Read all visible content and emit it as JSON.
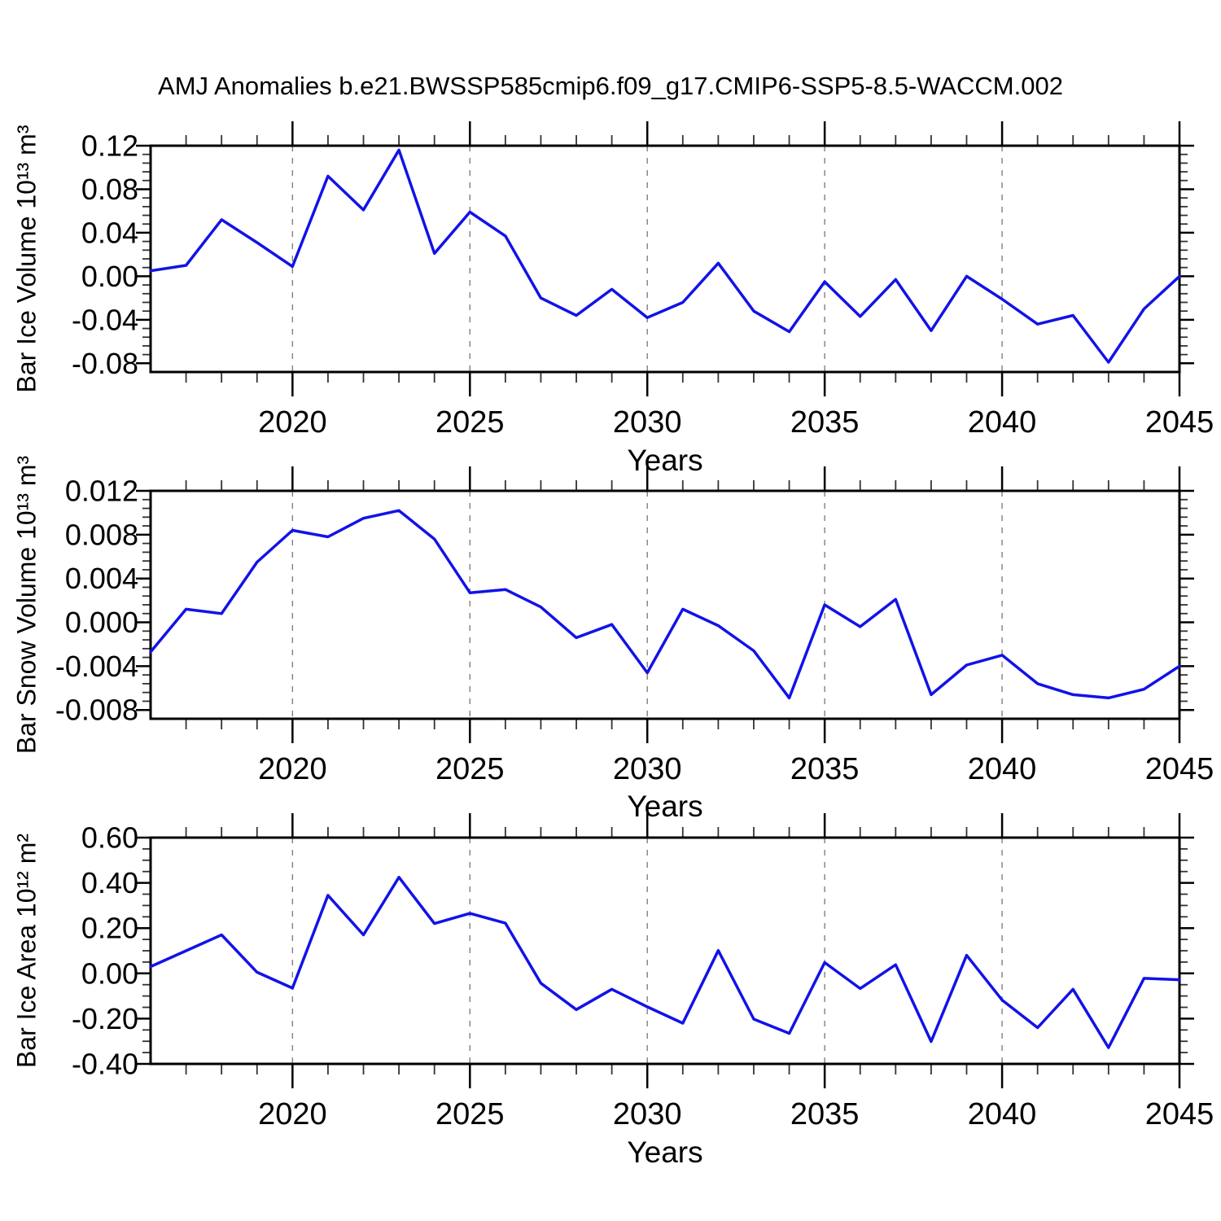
{
  "title": "AMJ Anomalies b.e21.BWSSP585cmip6.f09_g17.CMIP6-SSP5-8.5-WACCM.002",
  "colors": {
    "line": "#1212e8",
    "grid": "#808080",
    "axis": "#000000",
    "minor_tick": "#333333"
  },
  "chart_data": [
    {
      "type": "line",
      "ylabel": "Bar Ice Volume 10¹³ m³",
      "xlabel": "Years",
      "x": [
        2016,
        2017,
        2018,
        2019,
        2020,
        2021,
        2022,
        2023,
        2024,
        2025,
        2026,
        2027,
        2028,
        2029,
        2030,
        2031,
        2032,
        2033,
        2034,
        2035,
        2036,
        2037,
        2038,
        2039,
        2040,
        2041,
        2042,
        2043,
        2044,
        2045
      ],
      "values": [
        0.005,
        0.01,
        0.052,
        0.031,
        0.009,
        0.092,
        0.061,
        0.116,
        0.021,
        0.059,
        0.037,
        -0.02,
        -0.036,
        -0.012,
        -0.038,
        -0.024,
        0.012,
        -0.032,
        -0.051,
        -0.005,
        -0.037,
        -0.003,
        -0.05,
        0.0,
        -0.021,
        -0.044,
        -0.036,
        -0.079,
        -0.03,
        0.0
      ],
      "xlim": [
        2016,
        2045
      ],
      "ylim": [
        -0.088,
        0.12
      ],
      "yticks": [
        0.12,
        0.08,
        0.04,
        0.0,
        -0.04,
        -0.08
      ],
      "ytick_labels": [
        "0.12",
        "0.08",
        "0.04",
        "0.00",
        "-0.04",
        "-0.08"
      ],
      "y_minor_step": 0.008,
      "xticks": [
        2020,
        2025,
        2030,
        2035,
        2040,
        2045
      ],
      "xtick_labels": [
        "2020",
        "2025",
        "2030",
        "2035",
        "2040",
        "2045"
      ],
      "grid_x": [
        2020,
        2025,
        2030,
        2035,
        2040
      ],
      "grid_on": true,
      "legend": null
    },
    {
      "type": "line",
      "ylabel": "Bar Snow Volume 10¹³ m³",
      "xlabel": "Years",
      "x": [
        2016,
        2017,
        2018,
        2019,
        2020,
        2021,
        2022,
        2023,
        2024,
        2025,
        2026,
        2027,
        2028,
        2029,
        2030,
        2031,
        2032,
        2033,
        2034,
        2035,
        2036,
        2037,
        2038,
        2039,
        2040,
        2041,
        2042,
        2043,
        2044,
        2045
      ],
      "values": [
        -0.0027,
        0.0012,
        0.0008,
        0.0055,
        0.0084,
        0.0078,
        0.0095,
        0.0102,
        0.0076,
        0.0027,
        0.003,
        0.0014,
        -0.0014,
        -0.0002,
        -0.0046,
        0.0012,
        -0.0003,
        -0.0026,
        -0.0069,
        0.0016,
        -0.0004,
        0.0021,
        -0.0066,
        -0.0039,
        -0.003,
        -0.0056,
        -0.0066,
        -0.0069,
        -0.0061,
        -0.004
      ],
      "xlim": [
        2016,
        2045
      ],
      "ylim": [
        -0.0088,
        0.012
      ],
      "yticks": [
        0.012,
        0.008,
        0.004,
        0.0,
        -0.004,
        -0.008
      ],
      "ytick_labels": [
        "0.012",
        "0.008",
        "0.004",
        "0.000",
        "-0.004",
        "-0.008"
      ],
      "y_minor_step": 0.0008,
      "xticks": [
        2020,
        2025,
        2030,
        2035,
        2040,
        2045
      ],
      "xtick_labels": [
        "2020",
        "2025",
        "2030",
        "2035",
        "2040",
        "2045"
      ],
      "grid_x": [
        2020,
        2025,
        2030,
        2035,
        2040
      ],
      "grid_on": true,
      "legend": null
    },
    {
      "type": "line",
      "ylabel": "Bar Ice Area 10¹² m²",
      "xlabel": "Years",
      "x": [
        2016,
        2017,
        2018,
        2019,
        2020,
        2021,
        2022,
        2023,
        2024,
        2025,
        2026,
        2027,
        2028,
        2029,
        2030,
        2031,
        2032,
        2033,
        2034,
        2035,
        2036,
        2037,
        2038,
        2039,
        2040,
        2041,
        2042,
        2043,
        2044,
        2045
      ],
      "values": [
        0.03,
        0.1,
        0.17,
        0.005,
        -0.065,
        0.345,
        0.17,
        0.425,
        0.22,
        0.265,
        0.222,
        -0.043,
        -0.16,
        -0.07,
        -0.148,
        -0.22,
        0.101,
        -0.202,
        -0.265,
        0.048,
        -0.067,
        0.038,
        -0.301,
        0.08,
        -0.118,
        -0.24,
        -0.07,
        -0.328,
        -0.022,
        -0.028
      ],
      "xlim": [
        2016,
        2045
      ],
      "ylim": [
        -0.4,
        0.6
      ],
      "yticks": [
        0.6,
        0.4,
        0.2,
        0.0,
        -0.2,
        -0.4
      ],
      "ytick_labels": [
        "0.60",
        "0.40",
        "0.20",
        "0.00",
        "-0.20",
        "-0.40"
      ],
      "y_minor_step": 0.05,
      "xticks": [
        2020,
        2025,
        2030,
        2035,
        2040,
        2045
      ],
      "xtick_labels": [
        "2020",
        "2025",
        "2030",
        "2035",
        "2040",
        "2045"
      ],
      "grid_x": [
        2020,
        2025,
        2030,
        2035,
        2040
      ],
      "grid_on": true,
      "legend": null
    }
  ]
}
